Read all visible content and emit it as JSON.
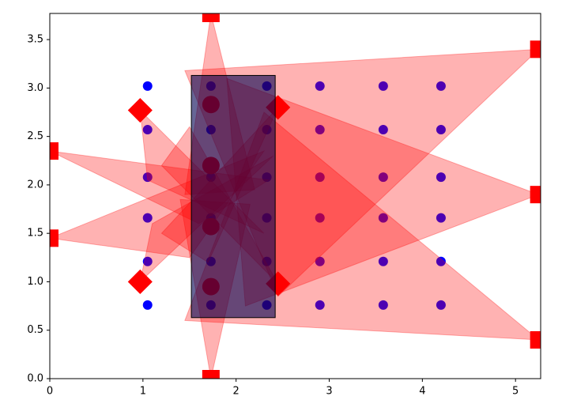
{
  "chart_data": {
    "type": "scatter",
    "xlim": [
      0,
      5.27
    ],
    "ylim": [
      0,
      3.77
    ],
    "xticks": [
      0,
      1,
      2,
      3,
      4,
      5
    ],
    "yticks": [
      {
        "value": 0,
        "label": "0.0"
      },
      {
        "value": 0.5,
        "label": "0.5"
      },
      {
        "value": 1,
        "label": "1.0"
      },
      {
        "value": 1.5,
        "label": "1.5"
      },
      {
        "value": 2,
        "label": "2.0"
      },
      {
        "value": 2.5,
        "label": "2.5"
      },
      {
        "value": 3,
        "label": "3.0"
      },
      {
        "value": 3.5,
        "label": "3.5"
      }
    ],
    "points": {
      "color": "#0000ff",
      "x": [
        1.05,
        1.05,
        1.05,
        1.05,
        1.05,
        1.05,
        1.73,
        1.73,
        1.73,
        1.73,
        1.73,
        1.73,
        2.33,
        2.33,
        2.33,
        2.33,
        2.33,
        2.33,
        2.9,
        2.9,
        2.9,
        2.9,
        2.9,
        2.9,
        3.58,
        3.58,
        3.58,
        3.58,
        3.58,
        3.58,
        4.2,
        4.2,
        4.2,
        4.2,
        4.2,
        4.2
      ],
      "y": [
        0.76,
        1.21,
        1.66,
        2.08,
        2.57,
        3.02,
        0.76,
        1.21,
        1.66,
        2.08,
        2.57,
        3.02,
        0.76,
        1.21,
        1.66,
        2.08,
        2.57,
        3.02,
        0.76,
        1.21,
        1.66,
        2.08,
        2.57,
        3.02,
        0.76,
        1.21,
        1.66,
        2.08,
        2.57,
        3.02,
        0.76,
        1.21,
        1.66,
        2.08,
        2.57,
        3.02
      ]
    },
    "circles": {
      "color": "#ff0000",
      "x": [
        1.73,
        1.73,
        1.73,
        1.73
      ],
      "y": [
        0.95,
        1.57,
        2.2,
        2.83
      ]
    },
    "polygon_color": "#ff0000",
    "polygon_alpha": 0.3,
    "polygons": [
      {
        "marker": "square",
        "points": [
          [
            1.73,
            3.77
          ],
          [
            1.45,
            1.9
          ],
          [
            2.2,
            1.95
          ]
        ]
      },
      {
        "marker": "square",
        "points": [
          [
            1.73,
            0
          ],
          [
            1.4,
            1.85
          ],
          [
            2.15,
            1.8
          ]
        ]
      },
      {
        "marker": "square",
        "points": [
          [
            0,
            2.35
          ],
          [
            2.35,
            2.05
          ],
          [
            1.6,
            1.6
          ]
        ]
      },
      {
        "marker": "square",
        "points": [
          [
            0,
            1.45
          ],
          [
            2.3,
            2.35
          ],
          [
            1.5,
            1.25
          ]
        ]
      },
      {
        "marker": "square",
        "points": [
          [
            5.25,
            3.4
          ],
          [
            1.45,
            3.18
          ],
          [
            2.45,
            0.85
          ]
        ]
      },
      {
        "marker": "square",
        "points": [
          [
            5.25,
            1.9
          ],
          [
            1.9,
            3.1
          ],
          [
            2.1,
            0.75
          ]
        ]
      },
      {
        "marker": "square",
        "points": [
          [
            5.25,
            0.4
          ],
          [
            1.45,
            0.6
          ],
          [
            2.3,
            2.75
          ]
        ]
      },
      {
        "marker": "diamond",
        "points": [
          [
            0.97,
            2.77
          ],
          [
            2.3,
            1.5
          ],
          [
            1.05,
            2.05
          ]
        ]
      },
      {
        "marker": "diamond",
        "points": [
          [
            0.97,
            1.0
          ],
          [
            2.4,
            2.3
          ],
          [
            1.1,
            1.6
          ]
        ]
      },
      {
        "marker": "diamond",
        "points": [
          [
            2.45,
            2.8
          ],
          [
            1.2,
            1.5
          ],
          [
            1.7,
            1.2
          ]
        ]
      },
      {
        "marker": "diamond",
        "points": [
          [
            2.45,
            0.98
          ],
          [
            1.2,
            2.2
          ],
          [
            1.5,
            2.6
          ]
        ]
      }
    ],
    "rectangle": {
      "x": [
        1.52,
        2.42
      ],
      "y": [
        0.63,
        3.13
      ],
      "color": "#000050",
      "alpha": 0.6
    }
  }
}
